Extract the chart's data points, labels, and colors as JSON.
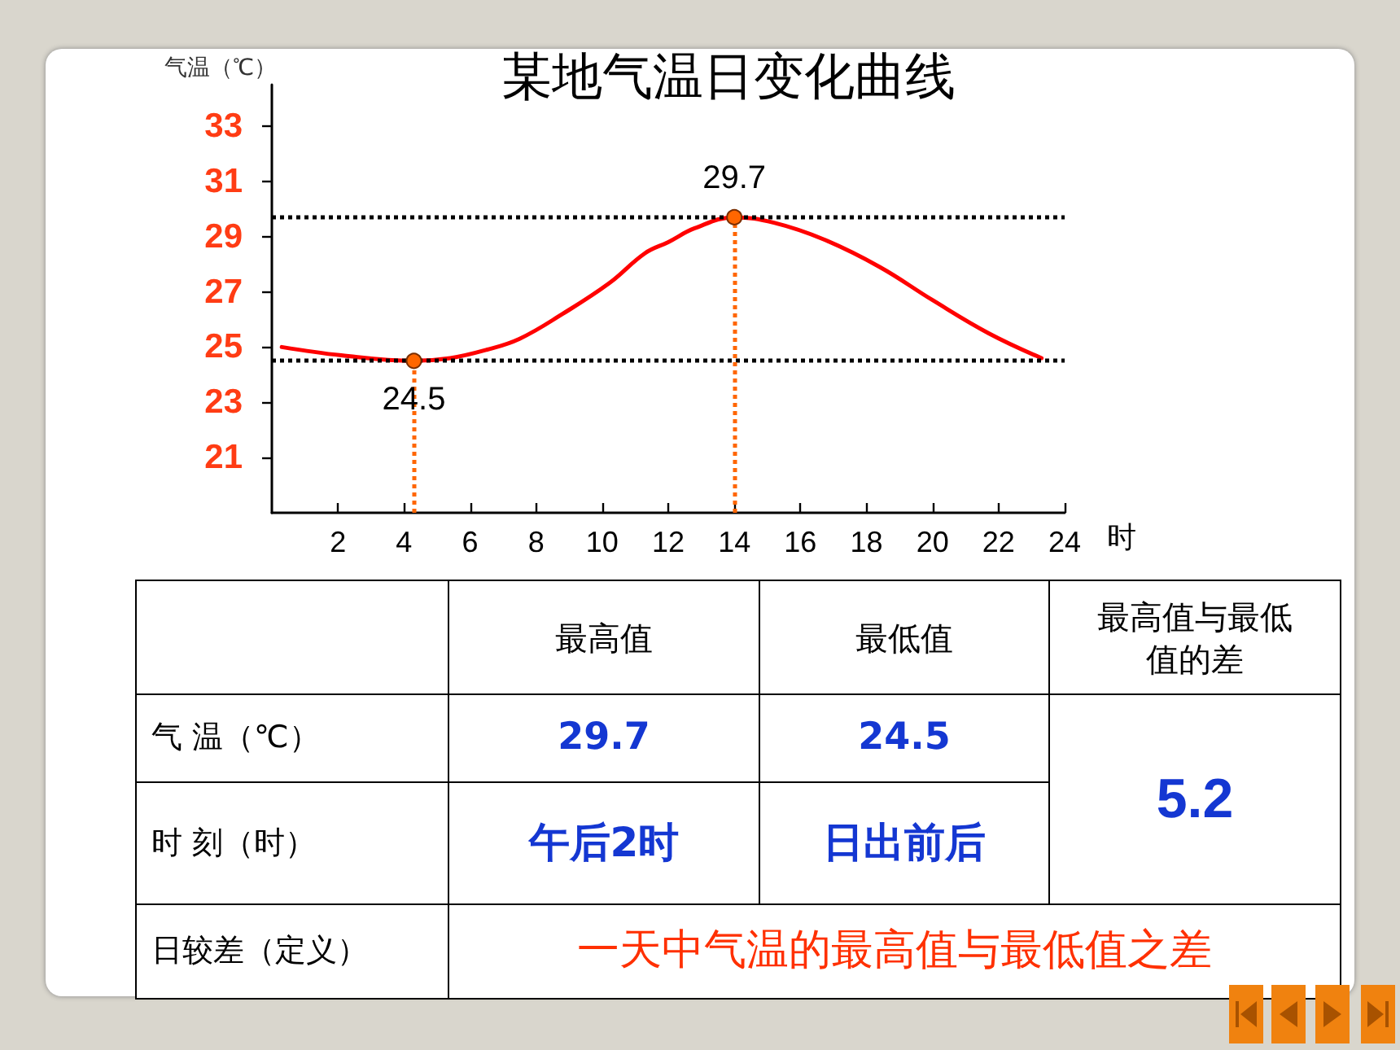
{
  "chart_data": {
    "type": "line",
    "title": "某地气温日变化曲线",
    "xlabel": "时",
    "ylabel": "气温（℃）",
    "xlim": [
      0,
      24
    ],
    "xticks": [
      2,
      4,
      6,
      8,
      10,
      12,
      14,
      16,
      18,
      20,
      22,
      24
    ],
    "ylim": [
      19,
      34.5
    ],
    "yticks": [
      21,
      23,
      25,
      27,
      29,
      31,
      33
    ],
    "series": [
      {
        "color": "#ff0000",
        "marker": "none",
        "x": [
          0.3,
          2.1,
          4.3,
          5.4,
          6.5,
          7.5,
          8.8,
          10.2,
          11.3,
          12,
          12.8,
          14,
          15.2,
          16.7,
          18.4,
          20,
          21.7,
          23.3
        ],
        "values": [
          25.0,
          24.7,
          24.5,
          24.6,
          24.9,
          25.3,
          26.2,
          27.3,
          28.4,
          28.8,
          29.3,
          29.7,
          29.5,
          28.9,
          27.9,
          26.7,
          25.5,
          24.6
        ]
      },
      {
        "type": "scatter",
        "color": "#ff6600",
        "marker": "circle",
        "x": [
          4.3,
          14
        ],
        "values": [
          24.5,
          29.7
        ],
        "value_labels": [
          "24.5",
          "29.7"
        ]
      }
    ],
    "ref_lines": [
      {
        "axis": "y",
        "value": 24.5,
        "color": "#000000",
        "line_style": "dotted"
      },
      {
        "axis": "y",
        "value": 29.7,
        "color": "#000000",
        "line_style": "dotted"
      },
      {
        "axis": "x",
        "value": 4.3,
        "color": "#ff6600",
        "line_style": "dotted"
      },
      {
        "axis": "x",
        "value": 14,
        "color": "#ff6600",
        "line_style": "dotted"
      }
    ],
    "annotations": [
      "最高值",
      "最低值",
      "最高值与最低值的差",
      "气 温（℃）",
      "29.7",
      "24.5",
      "5.2",
      "时 刻（时）",
      "午后2时",
      "日出前后",
      "日较差（定义）",
      "一天中气温的最高值与最低值之差"
    ]
  }
}
